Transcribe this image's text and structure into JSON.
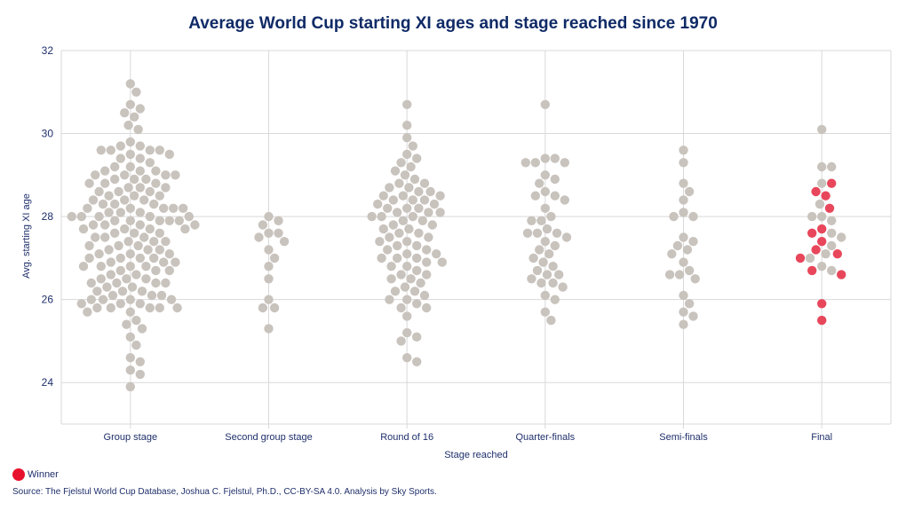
{
  "chart_data": {
    "type": "scatter",
    "title": "Average World Cup starting XI ages and stage reached since 1970",
    "xlabel": "Stage reached",
    "ylabel": "Avg. starting XI age",
    "ylim": [
      23,
      32
    ],
    "yticks": [
      24,
      26,
      28,
      30,
      32
    ],
    "categories": [
      "Group stage",
      "Second group stage",
      "Round of 16",
      "Quarter-finals",
      "Semi-finals",
      "Final"
    ],
    "colors": {
      "team": "#c9c3bd",
      "winner": "#e8475b",
      "grid": "#d9d9d9"
    },
    "legend": [
      {
        "label": "Winner",
        "color": "#e8112d"
      }
    ],
    "series": [
      {
        "name": "Group stage",
        "values": [
          31.2,
          31.0,
          30.7,
          30.6,
          30.5,
          30.4,
          30.2,
          30.1,
          29.8,
          29.7,
          29.7,
          29.6,
          29.6,
          29.6,
          29.6,
          29.5,
          29.5,
          29.4,
          29.4,
          29.3,
          29.2,
          29.2,
          29.1,
          29.1,
          29.1,
          29.0,
          29.0,
          29.0,
          29.0,
          28.9,
          28.9,
          28.9,
          28.8,
          28.8,
          28.8,
          28.7,
          28.7,
          28.7,
          28.6,
          28.6,
          28.6,
          28.5,
          28.5,
          28.5,
          28.4,
          28.4,
          28.4,
          28.3,
          28.3,
          28.3,
          28.2,
          28.2,
          28.2,
          28.2,
          28.2,
          28.1,
          28.1,
          28.1,
          28.0,
          28.0,
          28.0,
          28.0,
          28.0,
          27.9,
          27.9,
          27.9,
          27.9,
          27.9,
          27.8,
          27.8,
          27.8,
          27.8,
          27.7,
          27.7,
          27.7,
          27.7,
          27.6,
          27.6,
          27.6,
          27.5,
          27.5,
          27.5,
          27.4,
          27.4,
          27.4,
          27.3,
          27.3,
          27.3,
          27.2,
          27.2,
          27.2,
          27.1,
          27.1,
          27.1,
          27.0,
          27.0,
          27.0,
          27.0,
          26.9,
          26.9,
          26.9,
          26.8,
          26.8,
          26.8,
          26.8,
          26.7,
          26.7,
          26.7,
          26.6,
          26.6,
          26.5,
          26.5,
          26.5,
          26.4,
          26.4,
          26.4,
          26.4,
          26.3,
          26.3,
          26.2,
          26.2,
          26.2,
          26.1,
          26.1,
          26.1,
          26.0,
          26.0,
          26.0,
          26.0,
          25.9,
          25.9,
          25.9,
          25.8,
          25.8,
          25.8,
          25.8,
          25.8,
          25.7,
          25.7,
          25.5,
          25.4,
          25.3,
          25.1,
          24.9,
          24.6,
          24.5,
          24.3,
          24.2,
          23.9
        ]
      },
      {
        "name": "Second group stage",
        "values": [
          28.0,
          27.9,
          27.8,
          27.6,
          27.6,
          27.5,
          27.4,
          27.2,
          27.0,
          26.8,
          26.5,
          26.0,
          25.8,
          25.8,
          25.3
        ]
      },
      {
        "name": "Round of 16",
        "values": [
          30.7,
          30.2,
          29.9,
          29.7,
          29.5,
          29.4,
          29.3,
          29.2,
          29.1,
          29.0,
          28.9,
          28.8,
          28.8,
          28.7,
          28.7,
          28.6,
          28.6,
          28.5,
          28.5,
          28.5,
          28.4,
          28.4,
          28.4,
          28.3,
          28.3,
          28.2,
          28.2,
          28.2,
          28.1,
          28.1,
          28.1,
          28.0,
          28.0,
          28.0,
          27.9,
          27.9,
          27.8,
          27.8,
          27.7,
          27.7,
          27.6,
          27.6,
          27.5,
          27.5,
          27.4,
          27.4,
          27.3,
          27.3,
          27.2,
          27.2,
          27.1,
          27.1,
          27.0,
          27.0,
          27.0,
          26.9,
          26.9,
          26.8,
          26.8,
          26.7,
          26.6,
          26.6,
          26.5,
          26.5,
          26.4,
          26.3,
          26.2,
          26.2,
          26.1,
          26.0,
          26.0,
          25.9,
          25.8,
          25.8,
          25.6,
          25.2,
          25.1,
          25.0,
          24.6,
          24.5
        ]
      },
      {
        "name": "Quarter-finals",
        "values": [
          30.7,
          29.4,
          29.4,
          29.3,
          29.3,
          29.3,
          29.0,
          28.9,
          28.8,
          28.6,
          28.5,
          28.5,
          28.4,
          28.2,
          28.0,
          27.9,
          27.9,
          27.7,
          27.6,
          27.6,
          27.6,
          27.5,
          27.4,
          27.3,
          27.2,
          27.1,
          27.0,
          26.9,
          26.8,
          26.7,
          26.6,
          26.6,
          26.5,
          26.4,
          26.4,
          26.3,
          26.1,
          26.0,
          25.7,
          25.5
        ]
      },
      {
        "name": "Semi-finals",
        "values": [
          29.6,
          29.3,
          28.8,
          28.6,
          28.4,
          28.1,
          28.0,
          28.0,
          27.5,
          27.4,
          27.3,
          27.2,
          27.1,
          26.9,
          26.7,
          26.6,
          26.6,
          26.5,
          26.1,
          25.9,
          25.7,
          25.6,
          25.4
        ]
      },
      {
        "name": "Final",
        "values": [
          30.1,
          29.2,
          29.2,
          28.8,
          28.3,
          28.0,
          28.0,
          27.9,
          27.6,
          27.5,
          27.3,
          27.1,
          27.0,
          26.8,
          26.7
        ],
        "winners": [
          28.8,
          28.6,
          28.5,
          28.2,
          27.7,
          27.6,
          27.4,
          27.2,
          27.1,
          27.0,
          26.7,
          26.6,
          25.9,
          25.5
        ]
      }
    ]
  },
  "legend_label": "Winner",
  "source": "Source: The Fjelstul World Cup Database, Joshua C. Fjelstul, Ph.D., CC-BY-SA 4.0. Analysis by Sky Sports."
}
